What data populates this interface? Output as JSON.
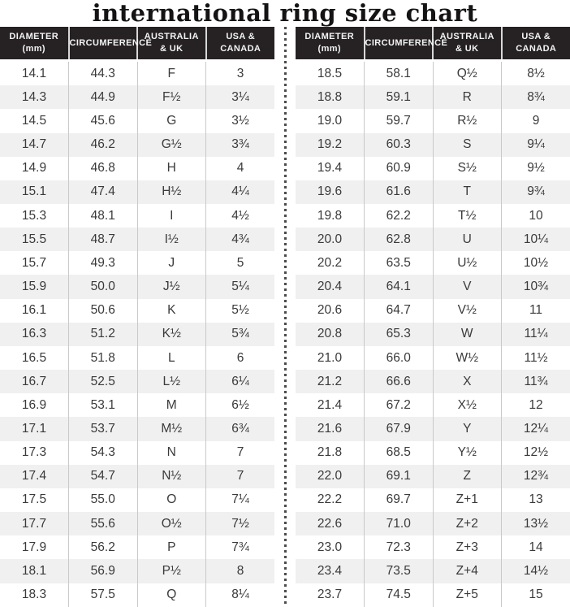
{
  "title": "international ring size chart",
  "column_headers": [
    {
      "lines": [
        "DIAMETER",
        "(mm)"
      ]
    },
    {
      "lines": [
        "CIRCUMFERENCE"
      ]
    },
    {
      "lines": [
        "AUSTRALIA",
        "& UK"
      ]
    },
    {
      "lines": [
        "USA &",
        "CANADA"
      ]
    }
  ],
  "colors": {
    "header_bg": "#262223",
    "header_text": "#f4f4f4",
    "row_bg": "#ffffff",
    "row_alt_bg": "#f0f0f0",
    "cell_text": "#3a3a3a",
    "cell_border": "#c9c9c9",
    "divider_dot": "#4b4b4b",
    "title_text": "#151314"
  },
  "chart_data": [
    {
      "type": "table",
      "side": "left",
      "columns": [
        "DIAMETER (mm)",
        "CIRCUMFERENCE",
        "AUSTRALIA & UK",
        "USA & CANADA"
      ],
      "rows": [
        [
          "14.1",
          "44.3",
          "F",
          "3"
        ],
        [
          "14.3",
          "44.9",
          "F½",
          "3¼"
        ],
        [
          "14.5",
          "45.6",
          "G",
          "3½"
        ],
        [
          "14.7",
          "46.2",
          "G½",
          "3¾"
        ],
        [
          "14.9",
          "46.8",
          "H",
          "4"
        ],
        [
          "15.1",
          "47.4",
          "H½",
          "4¼"
        ],
        [
          "15.3",
          "48.1",
          "I",
          "4½"
        ],
        [
          "15.5",
          "48.7",
          "I½",
          "4¾"
        ],
        [
          "15.7",
          "49.3",
          "J",
          "5"
        ],
        [
          "15.9",
          "50.0",
          "J½",
          "5¼"
        ],
        [
          "16.1",
          "50.6",
          "K",
          "5½"
        ],
        [
          "16.3",
          "51.2",
          "K½",
          "5¾"
        ],
        [
          "16.5",
          "51.8",
          "L",
          "6"
        ],
        [
          "16.7",
          "52.5",
          "L½",
          "6¼"
        ],
        [
          "16.9",
          "53.1",
          "M",
          "6½"
        ],
        [
          "17.1",
          "53.7",
          "M½",
          "6¾"
        ],
        [
          "17.3",
          "54.3",
          "N",
          "7"
        ],
        [
          "17.4",
          "54.7",
          "N½",
          "7"
        ],
        [
          "17.5",
          "55.0",
          "O",
          "7¼"
        ],
        [
          "17.7",
          "55.6",
          "O½",
          "7½"
        ],
        [
          "17.9",
          "56.2",
          "P",
          "7¾"
        ],
        [
          "18.1",
          "56.9",
          "P½",
          "8"
        ],
        [
          "18.3",
          "57.5",
          "Q",
          "8¼"
        ]
      ]
    },
    {
      "type": "table",
      "side": "right",
      "columns": [
        "DIAMETER (mm)",
        "CIRCUMFERENCE",
        "AUSTRALIA & UK",
        "USA & CANADA"
      ],
      "rows": [
        [
          "18.5",
          "58.1",
          "Q½",
          "8½"
        ],
        [
          "18.8",
          "59.1",
          "R",
          "8¾"
        ],
        [
          "19.0",
          "59.7",
          "R½",
          "9"
        ],
        [
          "19.2",
          "60.3",
          "S",
          "9¼"
        ],
        [
          "19.4",
          "60.9",
          "S½",
          "9½"
        ],
        [
          "19.6",
          "61.6",
          "T",
          "9¾"
        ],
        [
          "19.8",
          "62.2",
          "T½",
          "10"
        ],
        [
          "20.0",
          "62.8",
          "U",
          "10¼"
        ],
        [
          "20.2",
          "63.5",
          "U½",
          "10½"
        ],
        [
          "20.4",
          "64.1",
          "V",
          "10¾"
        ],
        [
          "20.6",
          "64.7",
          "V½",
          "11"
        ],
        [
          "20.8",
          "65.3",
          "W",
          "11¼"
        ],
        [
          "21.0",
          "66.0",
          "W½",
          "11½"
        ],
        [
          "21.2",
          "66.6",
          "X",
          "11¾"
        ],
        [
          "21.4",
          "67.2",
          "X½",
          "12"
        ],
        [
          "21.6",
          "67.9",
          "Y",
          "12¼"
        ],
        [
          "21.8",
          "68.5",
          "Y½",
          "12½"
        ],
        [
          "22.0",
          "69.1",
          "Z",
          "12¾"
        ],
        [
          "22.2",
          "69.7",
          "Z+1",
          "13"
        ],
        [
          "22.6",
          "71.0",
          "Z+2",
          "13½"
        ],
        [
          "23.0",
          "72.3",
          "Z+3",
          "14"
        ],
        [
          "23.4",
          "73.5",
          "Z+4",
          "14½"
        ],
        [
          "23.7",
          "74.5",
          "Z+5",
          "15"
        ]
      ]
    }
  ]
}
